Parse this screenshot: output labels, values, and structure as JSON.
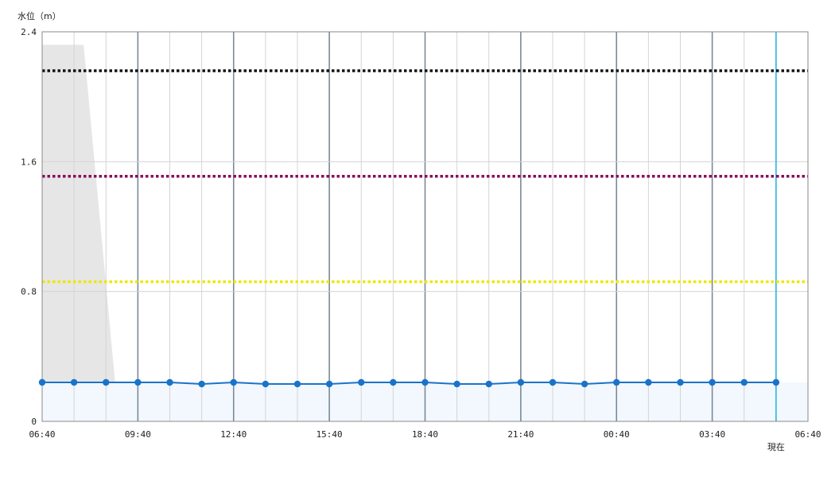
{
  "chart_data": {
    "type": "line",
    "ylabel": "水位（m）",
    "ylim": [
      0,
      2.4
    ],
    "yticks": [
      "2.4",
      "1.6",
      "0.8",
      "0"
    ],
    "ytick_values": [
      2.4,
      1.6,
      0.8,
      0
    ],
    "xlim_hours": [
      0,
      24
    ],
    "xtick_labels": [
      "06:40",
      "09:40",
      "12:40",
      "15:40",
      "18:40",
      "21:40",
      "00:40",
      "03:40",
      "06:40"
    ],
    "now_label": "現在",
    "now_hour": 23,
    "grid": true,
    "series": [
      {
        "values": [
          {
            "x": 0,
            "y": 0.24
          },
          {
            "x": 1,
            "y": 0.24
          },
          {
            "x": 2,
            "y": 0.24
          },
          {
            "x": 3,
            "y": 0.24
          },
          {
            "x": 4,
            "y": 0.24
          },
          {
            "x": 5,
            "y": 0.23
          },
          {
            "x": 6,
            "y": 0.24
          },
          {
            "x": 7,
            "y": 0.23
          },
          {
            "x": 8,
            "y": 0.23
          },
          {
            "x": 9,
            "y": 0.23
          },
          {
            "x": 10,
            "y": 0.24
          },
          {
            "x": 11,
            "y": 0.24
          },
          {
            "x": 12,
            "y": 0.24
          },
          {
            "x": 13,
            "y": 0.23
          },
          {
            "x": 14,
            "y": 0.23
          },
          {
            "x": 15,
            "y": 0.24
          },
          {
            "x": 16,
            "y": 0.24
          },
          {
            "x": 17,
            "y": 0.23
          },
          {
            "x": 18,
            "y": 0.24
          },
          {
            "x": 19,
            "y": 0.24
          },
          {
            "x": 20,
            "y": 0.24
          },
          {
            "x": 21,
            "y": 0.24
          },
          {
            "x": 22,
            "y": 0.24
          },
          {
            "x": 23,
            "y": 0.24
          }
        ]
      }
    ],
    "reference_lines": [
      {
        "y": 2.16,
        "color": "#111111"
      },
      {
        "y": 1.51,
        "color": "#8b0a5e"
      },
      {
        "y": 0.86,
        "color": "#f2e600"
      }
    ],
    "shaded_region": [
      {
        "x": 0,
        "y": 2.32
      },
      {
        "x": 1.3,
        "y": 2.32
      },
      {
        "x": 2.4,
        "y": 0
      }
    ],
    "colors": {
      "series": "#1a73c9",
      "fill": "#f2f8fe",
      "now_line": "#29b6e0",
      "shade": "#e6e6e6",
      "major_grid": "#7a8a97",
      "minor_grid": "#d4d4d4",
      "axis": "#8a8a8a"
    }
  }
}
